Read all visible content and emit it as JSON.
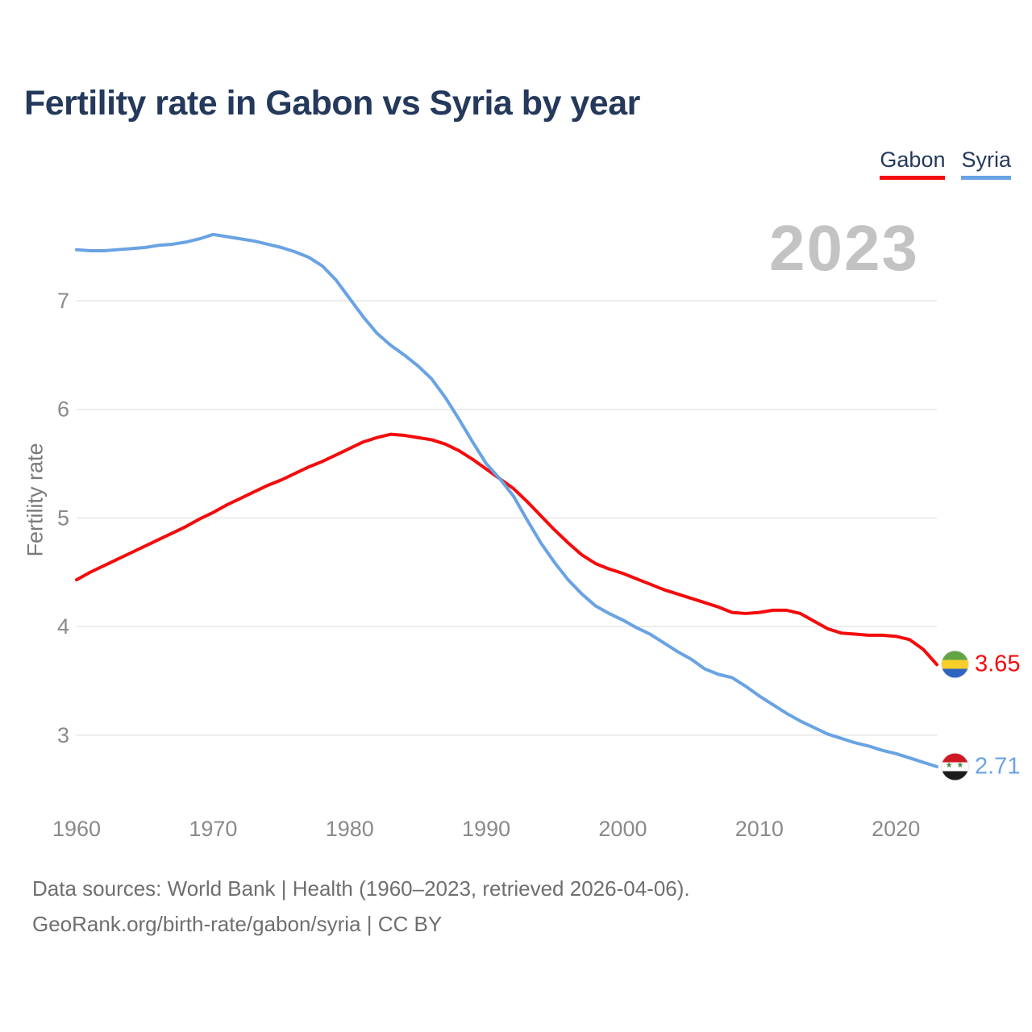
{
  "title": "Fertility rate in Gabon vs Syria by year",
  "watermark": "2023",
  "legend": {
    "items": [
      {
        "label": "Gabon",
        "color": "#f40b0b"
      },
      {
        "label": "Syria",
        "color": "#69a3e3"
      }
    ]
  },
  "chart_data": {
    "type": "line",
    "title": "Fertility rate in Gabon vs Syria by year",
    "xlabel": "",
    "ylabel": "Fertility rate",
    "grid": "horizontal",
    "legend_position": "top-right",
    "xticks": [
      1960,
      1970,
      1980,
      1990,
      2000,
      2010,
      2020
    ],
    "yticks": [
      3,
      4,
      5,
      6,
      7
    ],
    "ylim": [
      2.4,
      7.75
    ],
    "x_range": [
      1960,
      2023
    ],
    "x": [
      1960,
      1961,
      1962,
      1963,
      1964,
      1965,
      1966,
      1967,
      1968,
      1969,
      1970,
      1971,
      1972,
      1973,
      1974,
      1975,
      1976,
      1977,
      1978,
      1979,
      1980,
      1981,
      1982,
      1983,
      1984,
      1985,
      1986,
      1987,
      1988,
      1989,
      1990,
      1991,
      1992,
      1993,
      1994,
      1995,
      1996,
      1997,
      1998,
      1999,
      2000,
      2001,
      2002,
      2003,
      2004,
      2005,
      2006,
      2007,
      2008,
      2009,
      2010,
      2011,
      2012,
      2013,
      2014,
      2015,
      2016,
      2017,
      2018,
      2019,
      2020,
      2021,
      2022,
      2023
    ],
    "series": [
      {
        "name": "Gabon",
        "color": "#f40b0b",
        "end_label": "3.65",
        "values": [
          4.43,
          4.5,
          4.56,
          4.62,
          4.68,
          4.74,
          4.8,
          4.86,
          4.92,
          4.99,
          5.05,
          5.12,
          5.18,
          5.24,
          5.3,
          5.35,
          5.41,
          5.47,
          5.52,
          5.58,
          5.64,
          5.7,
          5.74,
          5.77,
          5.76,
          5.74,
          5.72,
          5.68,
          5.62,
          5.54,
          5.45,
          5.36,
          5.27,
          5.15,
          5.02,
          4.89,
          4.77,
          4.66,
          4.58,
          4.53,
          4.49,
          4.44,
          4.39,
          4.34,
          4.3,
          4.26,
          4.22,
          4.18,
          4.13,
          4.12,
          4.13,
          4.15,
          4.15,
          4.12,
          4.05,
          3.98,
          3.94,
          3.93,
          3.92,
          3.92,
          3.91,
          3.88,
          3.79,
          3.65
        ]
      },
      {
        "name": "Syria",
        "color": "#69a3e3",
        "end_label": "2.71",
        "values": [
          7.47,
          7.46,
          7.46,
          7.47,
          7.48,
          7.49,
          7.51,
          7.52,
          7.54,
          7.57,
          7.61,
          7.59,
          7.57,
          7.55,
          7.52,
          7.49,
          7.45,
          7.4,
          7.32,
          7.19,
          7.02,
          6.85,
          6.7,
          6.59,
          6.5,
          6.4,
          6.28,
          6.11,
          5.91,
          5.7,
          5.5,
          5.36,
          5.2,
          4.98,
          4.77,
          4.59,
          4.43,
          4.3,
          4.19,
          4.12,
          4.06,
          3.99,
          3.93,
          3.85,
          3.77,
          3.7,
          3.61,
          3.56,
          3.53,
          3.45,
          3.36,
          3.28,
          3.2,
          3.13,
          3.07,
          3.01,
          2.97,
          2.93,
          2.9,
          2.86,
          2.83,
          2.79,
          2.75,
          2.71
        ]
      }
    ]
  },
  "endpoints": {
    "gabon": {
      "value": "3.65",
      "flag": "gabon-flag"
    },
    "syria": {
      "value": "2.71",
      "flag": "syria-flag",
      "stars_glyph": "★ ★"
    }
  },
  "footer": {
    "line1": "Data sources: World Bank | Health (1960–2023, retrieved 2026-04-06).",
    "line2": "GeoRank.org/birth-rate/gabon/syria | CC BY"
  }
}
